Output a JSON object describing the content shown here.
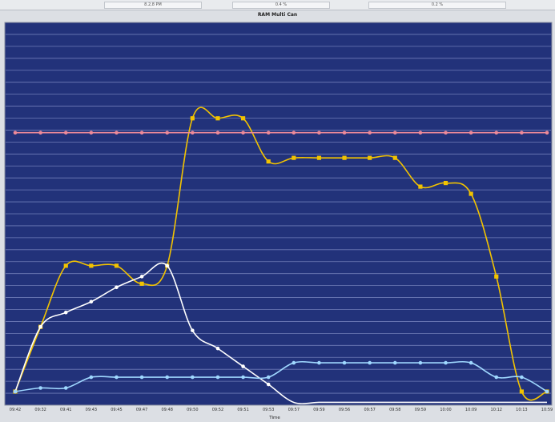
{
  "chart_data": {
    "type": "line",
    "title": "RAM Multi Can",
    "xlabel": "Time",
    "ylabel": "",
    "categories": [
      "09:42",
      "09:32",
      "09:41",
      "09:43",
      "09:45",
      "09:47",
      "09:48",
      "09:50",
      "09:52",
      "09:51",
      "09:53",
      "09:57",
      "09:59",
      "09:56",
      "09:57",
      "09:58",
      "09:59",
      "10:00",
      "10:09",
      "10:12",
      "10:13",
      "10:59"
    ],
    "ylim": [
      0,
      100
    ],
    "grid": true,
    "legend_location": "top",
    "legend": [
      "8.2,8 PM",
      "0.4 %",
      "0.2 %"
    ],
    "series": [
      {
        "values": [
          0,
          18,
          35,
          35,
          35,
          30,
          35,
          76,
          76,
          76,
          64,
          65,
          65,
          65,
          65,
          65,
          57,
          58,
          55,
          32,
          0,
          0
        ],
        "color": "#f2c300"
      },
      {
        "values": [
          0,
          18,
          22,
          25,
          29,
          32,
          35,
          17,
          12,
          7,
          2,
          -3,
          -3,
          -3,
          -3,
          -3,
          -3,
          -3,
          -3,
          -3,
          -3,
          -3
        ],
        "color": "#ffffff"
      },
      {
        "values": [
          0,
          1,
          1,
          4,
          4,
          4,
          4,
          4,
          4,
          4,
          4,
          8,
          8,
          8,
          8,
          8,
          8,
          8,
          8,
          4,
          4,
          0
        ],
        "color": "#9fd8ff"
      },
      {
        "values": [
          72,
          72,
          72,
          72,
          72,
          72,
          72,
          72,
          72,
          72,
          72,
          72,
          72,
          72,
          72,
          72,
          72,
          72,
          72,
          72,
          72,
          72
        ],
        "color": "#ee8a99"
      }
    ]
  }
}
